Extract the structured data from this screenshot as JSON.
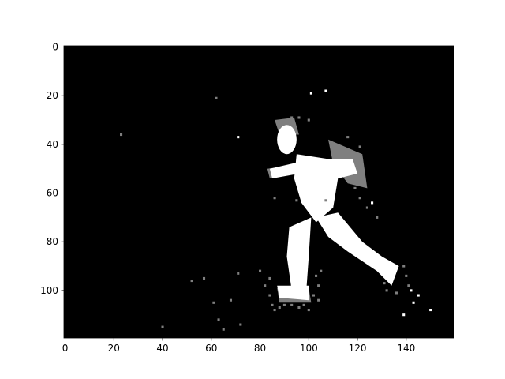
{
  "chart_data": {
    "type": "heatmap",
    "title": "",
    "xlabel": "",
    "ylabel": "",
    "image_width": 160,
    "image_height": 120,
    "xlim": [
      -0.5,
      159.5
    ],
    "ylim": [
      119.5,
      -0.5
    ],
    "x_ticks": [
      0,
      20,
      40,
      60,
      80,
      100,
      120,
      140
    ],
    "y_ticks": [
      0,
      20,
      40,
      60,
      80,
      100
    ],
    "colormap": "gray",
    "levels": {
      "background": "#000000",
      "mid": "#7f7f7f",
      "high": "#ffffff"
    },
    "subject": "silhouette of a running person (white) with grey motion pixels",
    "regions": {
      "head": {
        "cx": 91,
        "cy": 38,
        "rx": 4,
        "ry": 6
      },
      "torso_polygon": [
        [
          95,
          44
        ],
        [
          108,
          46
        ],
        [
          112,
          54
        ],
        [
          110,
          66
        ],
        [
          103,
          72
        ],
        [
          97,
          64
        ],
        [
          94,
          54
        ]
      ],
      "left_leg_polygon": [
        [
          92,
          74
        ],
        [
          101,
          70
        ],
        [
          100,
          86
        ],
        [
          99,
          100
        ],
        [
          93,
          100
        ],
        [
          91,
          86
        ]
      ],
      "right_leg_polygon": [
        [
          103,
          70
        ],
        [
          112,
          68
        ],
        [
          122,
          80
        ],
        [
          130,
          86
        ],
        [
          137,
          90
        ],
        [
          134,
          98
        ],
        [
          128,
          92
        ],
        [
          116,
          84
        ],
        [
          108,
          78
        ]
      ],
      "back_arm_polygon": [
        [
          84,
          50
        ],
        [
          97,
          47
        ],
        [
          96,
          52
        ],
        [
          85,
          54
        ]
      ],
      "front_arm_polygon": [
        [
          106,
          46
        ],
        [
          118,
          46
        ],
        [
          120,
          52
        ],
        [
          112,
          54
        ]
      ],
      "foot_left_polygon": [
        [
          87,
          98
        ],
        [
          100,
          98
        ],
        [
          100,
          104
        ],
        [
          88,
          103
        ]
      ],
      "shoe_grey_polygon": [
        [
          87,
          99
        ],
        [
          100,
          99
        ],
        [
          101,
          105
        ],
        [
          88,
          105
        ]
      ],
      "grey_back_polygon": [
        [
          108,
          38
        ],
        [
          122,
          44
        ],
        [
          124,
          58
        ],
        [
          116,
          56
        ],
        [
          110,
          48
        ]
      ],
      "grey_head_polygon": [
        [
          86,
          30
        ],
        [
          94,
          29
        ],
        [
          96,
          36
        ],
        [
          88,
          36
        ]
      ],
      "grey_arm_polygon": [
        [
          83,
          50
        ],
        [
          90,
          49
        ],
        [
          89,
          53
        ],
        [
          84,
          54
        ]
      ]
    },
    "scatter_pixels": [
      [
        101,
        19,
        255
      ],
      [
        107,
        18,
        255
      ],
      [
        23,
        36,
        127
      ],
      [
        62,
        21,
        127
      ],
      [
        71,
        37,
        255
      ],
      [
        121,
        41,
        127
      ],
      [
        116,
        37,
        127
      ],
      [
        96,
        29,
        127
      ],
      [
        100,
        30,
        127
      ],
      [
        93,
        29,
        127
      ],
      [
        126,
        64,
        255
      ],
      [
        124,
        66,
        127
      ],
      [
        121,
        62,
        127
      ],
      [
        119,
        58,
        127
      ],
      [
        128,
        70,
        127
      ],
      [
        139,
        90,
        127
      ],
      [
        140,
        94,
        127
      ],
      [
        136,
        101,
        127
      ],
      [
        141,
        98,
        127
      ],
      [
        142,
        100,
        255
      ],
      [
        145,
        102,
        255
      ],
      [
        143,
        105,
        255
      ],
      [
        150,
        108,
        255
      ],
      [
        139,
        110,
        255
      ],
      [
        134,
        96,
        255
      ],
      [
        131,
        97,
        127
      ],
      [
        132,
        100,
        127
      ],
      [
        84,
        95,
        127
      ],
      [
        80,
        92,
        127
      ],
      [
        71,
        93,
        127
      ],
      [
        52,
        96,
        127
      ],
      [
        57,
        95,
        127
      ],
      [
        61,
        105,
        127
      ],
      [
        68,
        104,
        127
      ],
      [
        63,
        112,
        127
      ],
      [
        65,
        116,
        127
      ],
      [
        72,
        114,
        127
      ],
      [
        40,
        115,
        127
      ],
      [
        82,
        98,
        127
      ],
      [
        84,
        102,
        127
      ],
      [
        85,
        106,
        127
      ],
      [
        86,
        108,
        127
      ],
      [
        88,
        107,
        127
      ],
      [
        90,
        106,
        127
      ],
      [
        93,
        106,
        127
      ],
      [
        96,
        107,
        127
      ],
      [
        98,
        106,
        127
      ],
      [
        102,
        102,
        127
      ],
      [
        104,
        98,
        127
      ],
      [
        103,
        94,
        127
      ],
      [
        105,
        92,
        127
      ],
      [
        100,
        108,
        127
      ],
      [
        104,
        104,
        127
      ],
      [
        86,
        62,
        127
      ],
      [
        95,
        63,
        127
      ],
      [
        107,
        63,
        127
      ]
    ]
  }
}
